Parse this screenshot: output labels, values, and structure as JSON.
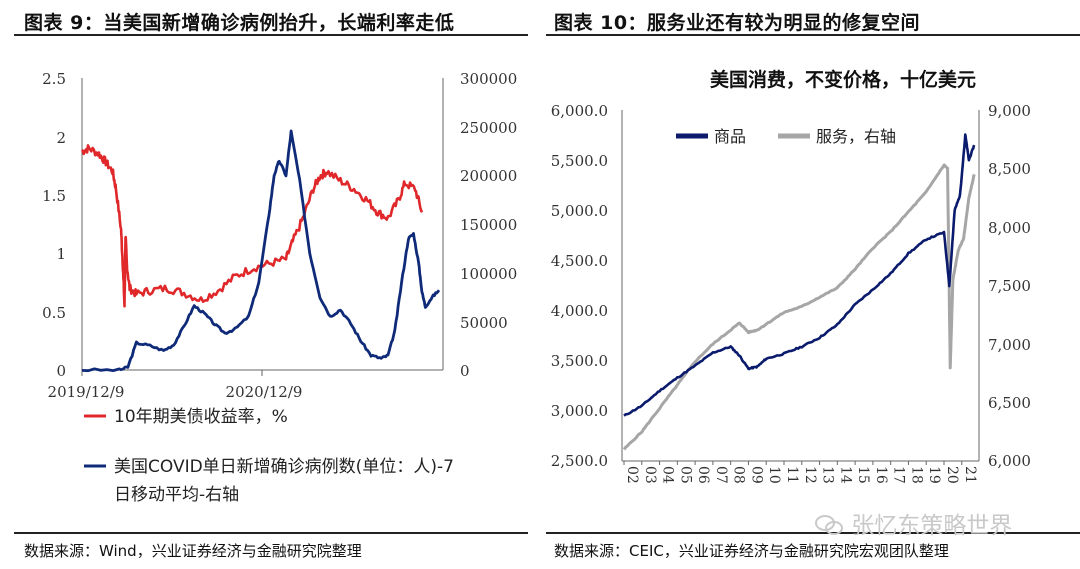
{
  "left_panel": {
    "title": "图表 9：当美国新增确诊病例抬升，长端利率走低",
    "source": "数据来源：Wind，兴业证券经济与金融研究院整理",
    "legend": {
      "item1": "10年期美债收益率，%",
      "item2_line1": "美国COVID单日新增确诊病例数(单位：人)-7",
      "item2_line2": "日移动平均-右轴"
    },
    "x_ticks": [
      "2019/12/9",
      "2020/12/9"
    ],
    "left_ticks": [
      "2.5",
      "2",
      "1.5",
      "1",
      "0.5",
      "0"
    ],
    "right_ticks": [
      "300000",
      "250000",
      "200000",
      "150000",
      "100000",
      "50000",
      "0"
    ]
  },
  "right_panel": {
    "title": "图表 10：服务业还有较为明显的修复空间",
    "chart_title": "美国消费，不变价格，十亿美元",
    "source": "数据来源：CEIC，兴业证券经济与金融研究院宏观团队整理",
    "legend": {
      "goods": "商品",
      "services": "服务，右轴"
    },
    "left_ticks": [
      "6,000.0",
      "5,500.0",
      "5,000.0",
      "4,500.0",
      "4,000.0",
      "3,500.0",
      "3,000.0",
      "2,500.0"
    ],
    "right_ticks": [
      "9,000",
      "8,500",
      "8,000",
      "7,500",
      "7,000",
      "6,500",
      "6,000"
    ],
    "year_ticks": [
      "02",
      "03",
      "04",
      "05",
      "06",
      "07",
      "08",
      "09",
      "10",
      "11",
      "12",
      "13",
      "14",
      "15",
      "16",
      "17",
      "18",
      "19",
      "20",
      "21"
    ]
  },
  "watermark": "张忆东策略世界",
  "colors": {
    "red": "#e0282b",
    "navy": "#0f2a78",
    "darknavy": "#0a1a6c",
    "gray": "#a6a6a6"
  },
  "chart_data": [
    {
      "type": "line",
      "title": "当美国新增确诊病例抬升，长端利率走低",
      "x_range": [
        "2019-12-09",
        "2021-07-20"
      ],
      "series": [
        {
          "name": "10年期美债收益率，%",
          "axis": "left",
          "ylim": [
            0,
            2.5
          ],
          "points": [
            [
              0,
              1.87
            ],
            [
              0.02,
              1.9
            ],
            [
              0.05,
              1.85
            ],
            [
              0.07,
              1.78
            ],
            [
              0.09,
              1.7
            ],
            [
              0.1,
              1.55
            ],
            [
              0.115,
              1.2
            ],
            [
              0.12,
              0.9
            ],
            [
              0.125,
              0.55
            ],
            [
              0.128,
              1.15
            ],
            [
              0.132,
              0.9
            ],
            [
              0.14,
              0.7
            ],
            [
              0.16,
              0.65
            ],
            [
              0.2,
              0.68
            ],
            [
              0.25,
              0.7
            ],
            [
              0.3,
              0.66
            ],
            [
              0.35,
              0.6
            ],
            [
              0.4,
              0.68
            ],
            [
              0.45,
              0.8
            ],
            [
              0.5,
              0.87
            ],
            [
              0.55,
              0.91
            ],
            [
              0.6,
              0.95
            ],
            [
              0.62,
              1.1
            ],
            [
              0.65,
              1.3
            ],
            [
              0.68,
              1.55
            ],
            [
              0.7,
              1.66
            ],
            [
              0.72,
              1.7
            ],
            [
              0.76,
              1.62
            ],
            [
              0.8,
              1.55
            ],
            [
              0.84,
              1.45
            ],
            [
              0.87,
              1.35
            ],
            [
              0.9,
              1.3
            ],
            [
              0.93,
              1.45
            ],
            [
              0.95,
              1.6
            ],
            [
              0.98,
              1.55
            ],
            [
              1.0,
              1.35
            ]
          ]
        },
        {
          "name": "美国COVID单日新增确诊病例数(单位：人)-7日移动平均",
          "axis": "right",
          "ylim": [
            0,
            300000
          ],
          "points": [
            [
              0,
              0
            ],
            [
              0.11,
              0
            ],
            [
              0.135,
              3000
            ],
            [
              0.16,
              28000
            ],
            [
              0.2,
              25000
            ],
            [
              0.24,
              20000
            ],
            [
              0.27,
              26000
            ],
            [
              0.3,
              45000
            ],
            [
              0.33,
              66000
            ],
            [
              0.36,
              58000
            ],
            [
              0.39,
              47000
            ],
            [
              0.42,
              38000
            ],
            [
              0.45,
              42000
            ],
            [
              0.49,
              55000
            ],
            [
              0.52,
              90000
            ],
            [
              0.55,
              160000
            ],
            [
              0.565,
              200000
            ],
            [
              0.58,
              215000
            ],
            [
              0.6,
              200000
            ],
            [
              0.615,
              245000
            ],
            [
              0.64,
              195000
            ],
            [
              0.67,
              120000
            ],
            [
              0.7,
              75000
            ],
            [
              0.73,
              55000
            ],
            [
              0.76,
              62000
            ],
            [
              0.79,
              48000
            ],
            [
              0.82,
              30000
            ],
            [
              0.85,
              15000
            ],
            [
              0.88,
              12000
            ],
            [
              0.9,
              15000
            ],
            [
              0.92,
              40000
            ],
            [
              0.94,
              90000
            ],
            [
              0.96,
              135000
            ],
            [
              0.975,
              140000
            ],
            [
              0.99,
              110000
            ],
            [
              1.0,
              80000
            ],
            [
              1.01,
              65000
            ],
            [
              1.03,
              75000
            ],
            [
              1.05,
              82000
            ]
          ]
        }
      ]
    },
    {
      "type": "line",
      "title": "美国消费，不变价格，十亿美元",
      "xlim": [
        2002,
        2021.8
      ],
      "series": [
        {
          "name": "商品",
          "axis": "left",
          "ylim": [
            2500,
            6000
          ],
          "points": [
            [
              2002,
              2950
            ],
            [
              2003,
              3050
            ],
            [
              2004,
              3200
            ],
            [
              2005,
              3330
            ],
            [
              2006,
              3450
            ],
            [
              2007,
              3580
            ],
            [
              2008,
              3640
            ],
            [
              2008.5,
              3550
            ],
            [
              2009,
              3420
            ],
            [
              2009.5,
              3440
            ],
            [
              2010,
              3520
            ],
            [
              2011,
              3570
            ],
            [
              2012,
              3640
            ],
            [
              2013,
              3730
            ],
            [
              2014,
              3860
            ],
            [
              2015,
              4060
            ],
            [
              2016,
              4210
            ],
            [
              2017,
              4370
            ],
            [
              2018,
              4570
            ],
            [
              2019,
              4710
            ],
            [
              2020,
              4780
            ],
            [
              2020.3,
              4250
            ],
            [
              2020.6,
              5000
            ],
            [
              2020.9,
              5150
            ],
            [
              2021.2,
              5750
            ],
            [
              2021.4,
              5500
            ],
            [
              2021.7,
              5650
            ]
          ]
        },
        {
          "name": "服务，右轴",
          "axis": "right",
          "ylim": [
            6000,
            9000
          ],
          "points": [
            [
              2002,
              6100
            ],
            [
              2003,
              6250
            ],
            [
              2004,
              6450
            ],
            [
              2005,
              6650
            ],
            [
              2006,
              6850
            ],
            [
              2007,
              7000
            ],
            [
              2008,
              7120
            ],
            [
              2008.5,
              7180
            ],
            [
              2009,
              7100
            ],
            [
              2009.5,
              7120
            ],
            [
              2010,
              7170
            ],
            [
              2011,
              7270
            ],
            [
              2012,
              7320
            ],
            [
              2013,
              7400
            ],
            [
              2014,
              7480
            ],
            [
              2015,
              7640
            ],
            [
              2016,
              7820
            ],
            [
              2017,
              7960
            ],
            [
              2018,
              8130
            ],
            [
              2019,
              8300
            ],
            [
              2020,
              8530
            ],
            [
              2020.2,
              8500
            ],
            [
              2020.35,
              6800
            ],
            [
              2020.5,
              7550
            ],
            [
              2020.8,
              7800
            ],
            [
              2021.1,
              7900
            ],
            [
              2021.4,
              8250
            ],
            [
              2021.7,
              8450
            ]
          ]
        }
      ]
    }
  ]
}
